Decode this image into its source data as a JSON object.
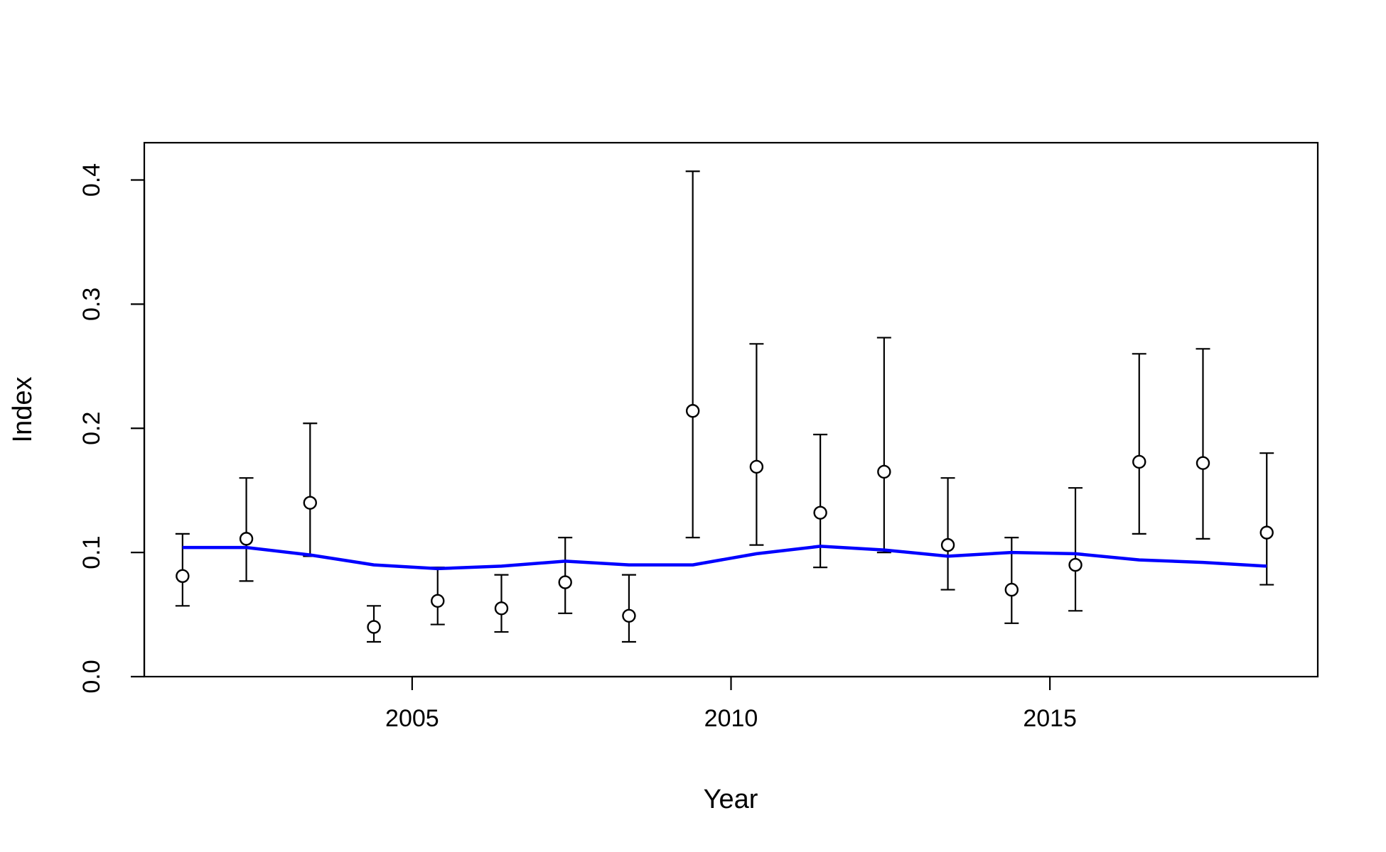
{
  "chart_data": {
    "type": "scatter",
    "title": "",
    "xlabel": "Year",
    "ylabel": "Index",
    "xlim": [
      2000.8,
      2019.2
    ],
    "ylim": [
      0,
      0.43
    ],
    "x_ticks": [
      2005,
      2010,
      2015
    ],
    "y_ticks": [
      0.0,
      0.1,
      0.2,
      0.3,
      0.4
    ],
    "x_tick_labels": [
      "2005",
      "2010",
      "2015"
    ],
    "y_tick_labels": [
      "0.0",
      "0.1",
      "0.2",
      "0.3",
      "0.4"
    ],
    "grid": false,
    "legend": "none",
    "series": [
      {
        "type": "points-with-error-bars",
        "marker": "open-circle",
        "color": "#000000",
        "points": [
          {
            "x": 2001.4,
            "y": 0.081,
            "lo": 0.057,
            "hi": 0.115
          },
          {
            "x": 2002.4,
            "y": 0.111,
            "lo": 0.077,
            "hi": 0.16
          },
          {
            "x": 2003.4,
            "y": 0.14,
            "lo": 0.097,
            "hi": 0.204
          },
          {
            "x": 2004.4,
            "y": 0.04,
            "lo": 0.028,
            "hi": 0.057
          },
          {
            "x": 2005.4,
            "y": 0.061,
            "lo": 0.042,
            "hi": 0.088
          },
          {
            "x": 2006.4,
            "y": 0.055,
            "lo": 0.036,
            "hi": 0.082
          },
          {
            "x": 2007.4,
            "y": 0.076,
            "lo": 0.051,
            "hi": 0.112
          },
          {
            "x": 2008.4,
            "y": 0.049,
            "lo": 0.028,
            "hi": 0.082
          },
          {
            "x": 2009.4,
            "y": 0.214,
            "lo": 0.112,
            "hi": 0.407
          },
          {
            "x": 2010.4,
            "y": 0.169,
            "lo": 0.106,
            "hi": 0.268
          },
          {
            "x": 2011.4,
            "y": 0.132,
            "lo": 0.088,
            "hi": 0.195
          },
          {
            "x": 2012.4,
            "y": 0.165,
            "lo": 0.1,
            "hi": 0.273
          },
          {
            "x": 2013.4,
            "y": 0.106,
            "lo": 0.07,
            "hi": 0.16
          },
          {
            "x": 2014.4,
            "y": 0.07,
            "lo": 0.043,
            "hi": 0.112
          },
          {
            "x": 2015.4,
            "y": 0.09,
            "lo": 0.053,
            "hi": 0.152
          },
          {
            "x": 2016.4,
            "y": 0.173,
            "lo": 0.115,
            "hi": 0.26
          },
          {
            "x": 2017.4,
            "y": 0.172,
            "lo": 0.111,
            "hi": 0.264
          },
          {
            "x": 2018.4,
            "y": 0.116,
            "lo": 0.074,
            "hi": 0.18
          }
        ]
      },
      {
        "type": "line",
        "color": "#0000ff",
        "x": [
          2001.4,
          2002.4,
          2003.4,
          2004.4,
          2005.4,
          2006.4,
          2007.4,
          2008.4,
          2009.4,
          2010.4,
          2011.4,
          2012.4,
          2013.4,
          2014.4,
          2015.4,
          2016.4,
          2017.4,
          2018.4
        ],
        "y": [
          0.104,
          0.104,
          0.098,
          0.09,
          0.087,
          0.089,
          0.093,
          0.09,
          0.09,
          0.099,
          0.105,
          0.102,
          0.097,
          0.1,
          0.099,
          0.094,
          0.092,
          0.089
        ]
      }
    ]
  }
}
